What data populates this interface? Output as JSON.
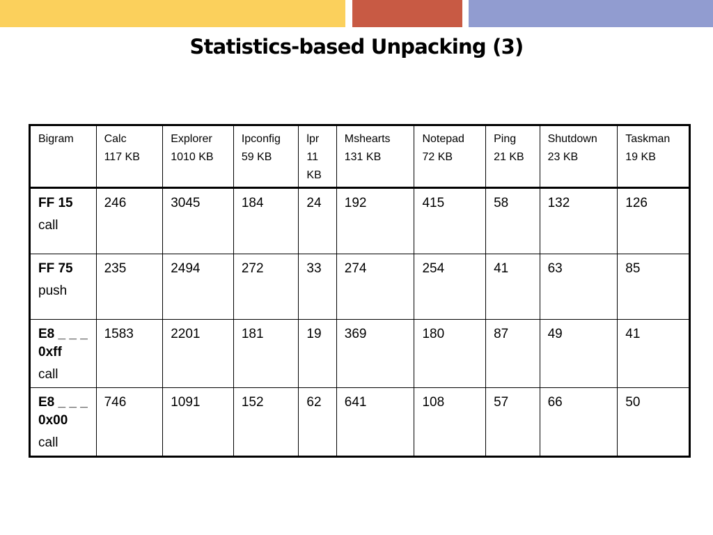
{
  "slide": {
    "title": "Statistics-based Unpacking (3)",
    "colors": {
      "bar_yellow": "#fbd05c",
      "bar_red": "#c85a44",
      "bar_blue": "#919cd0"
    }
  },
  "table": {
    "corner": "Bigram",
    "columns": [
      {
        "name": "Calc",
        "size": "117 KB"
      },
      {
        "name": "Explorer",
        "size": "1010 KB"
      },
      {
        "name": "Ipconfig",
        "size": "59 KB"
      },
      {
        "name": "lpr",
        "size": "11 KB"
      },
      {
        "name": "Mshearts",
        "size": "131 KB"
      },
      {
        "name": "Notepad",
        "size": "72 KB"
      },
      {
        "name": "Ping",
        "size": "21 KB"
      },
      {
        "name": "Shutdown",
        "size": "23 KB"
      },
      {
        "name": "Taskman",
        "size": "19 KB"
      }
    ],
    "rows": [
      {
        "code": "FF 15",
        "op": "call",
        "values": [
          "246",
          "3045",
          "184",
          "24",
          "192",
          "415",
          "58",
          "132",
          "126"
        ]
      },
      {
        "code": "FF 75",
        "op": "push",
        "values": [
          "235",
          "2494",
          "272",
          "33",
          "274",
          "254",
          "41",
          "63",
          "85"
        ]
      },
      {
        "code": "E8 _ _ _ 0xff",
        "op": "call",
        "values": [
          "1583",
          "2201",
          "181",
          "19",
          "369",
          "180",
          "87",
          "49",
          "41"
        ]
      },
      {
        "code": "E8 _ _ _ 0x00",
        "op": "call",
        "values": [
          "746",
          "1091",
          "152",
          "62",
          "641",
          "108",
          "57",
          "66",
          "50"
        ]
      }
    ]
  }
}
